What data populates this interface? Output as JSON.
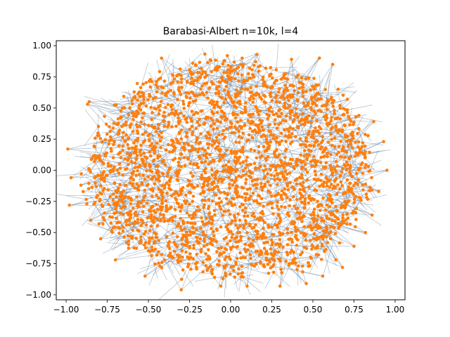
{
  "chart_data": {
    "type": "scatter",
    "subtype": "network-graph",
    "title": "Barabasi-Albert n=10k, l=4",
    "xlabel": "",
    "ylabel": "",
    "xlim": [
      -1.06,
      1.06
    ],
    "ylim": [
      -1.04,
      1.04
    ],
    "xticks": [
      -1.0,
      -0.75,
      -0.5,
      -0.25,
      0.0,
      0.25,
      0.5,
      0.75,
      1.0
    ],
    "yticks": [
      -1.0,
      -0.75,
      -0.5,
      -0.25,
      0.0,
      0.25,
      0.5,
      0.75,
      1.0
    ],
    "xtick_labels": [
      "−1.00",
      "−0.75",
      "−0.50",
      "−0.25",
      "0.00",
      "0.25",
      "0.50",
      "0.75",
      "1.00"
    ],
    "ytick_labels": [
      "−1.00",
      "−0.75",
      "−0.50",
      "−0.25",
      "0.00",
      "0.25",
      "0.50",
      "0.75",
      "1.00"
    ],
    "grid": false,
    "legend": "none",
    "node_color": "#ff7f0e",
    "edge_color": "#4a6a8a",
    "outlier_nodes": {
      "x": [
        -0.99,
        -0.98,
        -0.87,
        -0.86,
        -0.85,
        -0.91,
        -0.79,
        -0.42,
        -0.23,
        -0.12,
        -0.02,
        0.07,
        0.16,
        0.37,
        0.54,
        0.62,
        0.64,
        0.71,
        0.78,
        0.82,
        0.87,
        0.93,
        0.95,
        0.9,
        0.86,
        0.75,
        0.68,
        0.56,
        0.46,
        0.3,
        0.1,
        -0.06,
        -0.3,
        -0.52,
        -0.7,
        -0.8,
        -0.97
      ],
      "y": [
        0.17,
        -0.28,
        0.53,
        0.55,
        -0.4,
        -0.12,
        -0.55,
        0.9,
        0.86,
        0.88,
        0.92,
        0.9,
        0.93,
        0.89,
        0.9,
        0.85,
        -0.72,
        0.57,
        0.44,
        -0.5,
        0.39,
        0.23,
        0.0,
        -0.17,
        -0.36,
        -0.61,
        -0.78,
        -0.85,
        -0.91,
        -0.93,
        -0.93,
        -0.93,
        -0.96,
        -0.85,
        -0.72,
        -0.43,
        -0.06
      ]
    }
  }
}
